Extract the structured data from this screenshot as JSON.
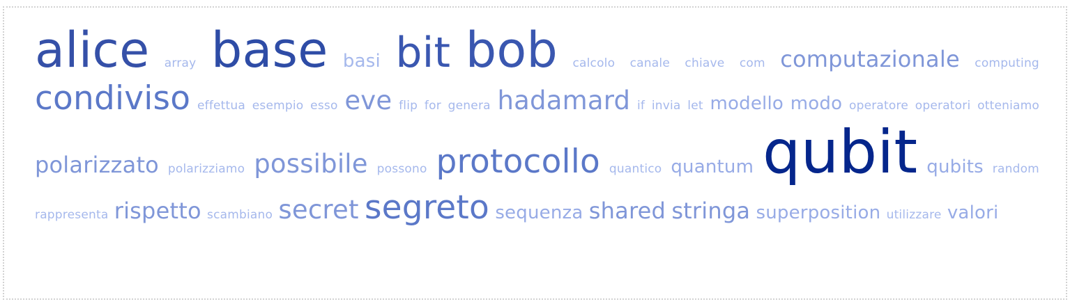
{
  "tags": [
    {
      "text": "alice",
      "weight": 8,
      "color": "#3550a8"
    },
    {
      "text": "array",
      "weight": 1,
      "color": "#a5b8ec"
    },
    {
      "text": "base",
      "weight": 8,
      "color": "#2e4ca6"
    },
    {
      "text": "basi",
      "weight": 3,
      "color": "#a5b8ec"
    },
    {
      "text": "bit",
      "weight": 7,
      "color": "#3a57b0"
    },
    {
      "text": "bob",
      "weight": 8,
      "color": "#3a57b0"
    },
    {
      "text": "calcolo",
      "weight": 1,
      "color": "#a5b8ec"
    },
    {
      "text": "canale",
      "weight": 1,
      "color": "#a5b8ec"
    },
    {
      "text": "chiave",
      "weight": 1,
      "color": "#a5b8ec"
    },
    {
      "text": "com",
      "weight": 1,
      "color": "#a5b8ec"
    },
    {
      "text": "computazionale",
      "weight": 4,
      "color": "#7f96d8"
    },
    {
      "text": "computing",
      "weight": 1,
      "color": "#a5b8ec"
    },
    {
      "text": "condiviso",
      "weight": 6,
      "color": "#5b78c8"
    },
    {
      "text": "effettua",
      "weight": 1,
      "color": "#a5b8ec"
    },
    {
      "text": "esempio",
      "weight": 1,
      "color": "#a5b8ec"
    },
    {
      "text": "esso",
      "weight": 1,
      "color": "#a5b8ec"
    },
    {
      "text": "eve",
      "weight": 5,
      "color": "#7f96d8"
    },
    {
      "text": "flip",
      "weight": 1,
      "color": "#a5b8ec"
    },
    {
      "text": "for",
      "weight": 1,
      "color": "#a5b8ec"
    },
    {
      "text": "genera",
      "weight": 1,
      "color": "#a5b8ec"
    },
    {
      "text": "hadamard",
      "weight": 5,
      "color": "#7f96d8"
    },
    {
      "text": "if",
      "weight": 1,
      "color": "#a5b8ec"
    },
    {
      "text": "invia",
      "weight": 1,
      "color": "#a5b8ec"
    },
    {
      "text": "let",
      "weight": 1,
      "color": "#a5b8ec"
    },
    {
      "text": "modello",
      "weight": 3,
      "color": "#97abe6"
    },
    {
      "text": "modo",
      "weight": 3,
      "color": "#97abe6"
    },
    {
      "text": "operatore",
      "weight": 1,
      "color": "#a5b8ec"
    },
    {
      "text": "operatori",
      "weight": 1,
      "color": "#a5b8ec"
    },
    {
      "text": "otteniamo",
      "weight": 1,
      "color": "#a5b8ec"
    },
    {
      "text": "polarizzato",
      "weight": 4,
      "color": "#7f96d8"
    },
    {
      "text": "polarizziamo",
      "weight": 1,
      "color": "#a5b8ec"
    },
    {
      "text": "possibile",
      "weight": 5,
      "color": "#7f96d8"
    },
    {
      "text": "possono",
      "weight": 1,
      "color": "#a5b8ec"
    },
    {
      "text": "protocollo",
      "weight": 6,
      "color": "#5b78c8"
    },
    {
      "text": "quantico",
      "weight": 1,
      "color": "#a5b8ec"
    },
    {
      "text": "quantum",
      "weight": 3,
      "color": "#97abe6"
    },
    {
      "text": "qubit",
      "weight": 10,
      "color": "#05268c"
    },
    {
      "text": "qubits",
      "weight": 3,
      "color": "#97abe6"
    },
    {
      "text": "random",
      "weight": 1,
      "color": "#a5b8ec"
    },
    {
      "text": "rappresenta",
      "weight": 1,
      "color": "#a5b8ec"
    },
    {
      "text": "rispetto",
      "weight": 4,
      "color": "#7f96d8"
    },
    {
      "text": "scambiano",
      "weight": 1,
      "color": "#a5b8ec"
    },
    {
      "text": "secret",
      "weight": 5,
      "color": "#7f96d8"
    },
    {
      "text": "segreto",
      "weight": 6,
      "color": "#5b78c8"
    },
    {
      "text": "sequenza",
      "weight": 3,
      "color": "#97abe6"
    },
    {
      "text": "shared",
      "weight": 4,
      "color": "#7f96d8"
    },
    {
      "text": "stringa",
      "weight": 4,
      "color": "#7f96d8"
    },
    {
      "text": "superposition",
      "weight": 3,
      "color": "#97abe6"
    },
    {
      "text": "utilizzare",
      "weight": 1,
      "color": "#a5b8ec"
    },
    {
      "text": "valori",
      "weight": 3,
      "color": "#97abe6"
    }
  ]
}
